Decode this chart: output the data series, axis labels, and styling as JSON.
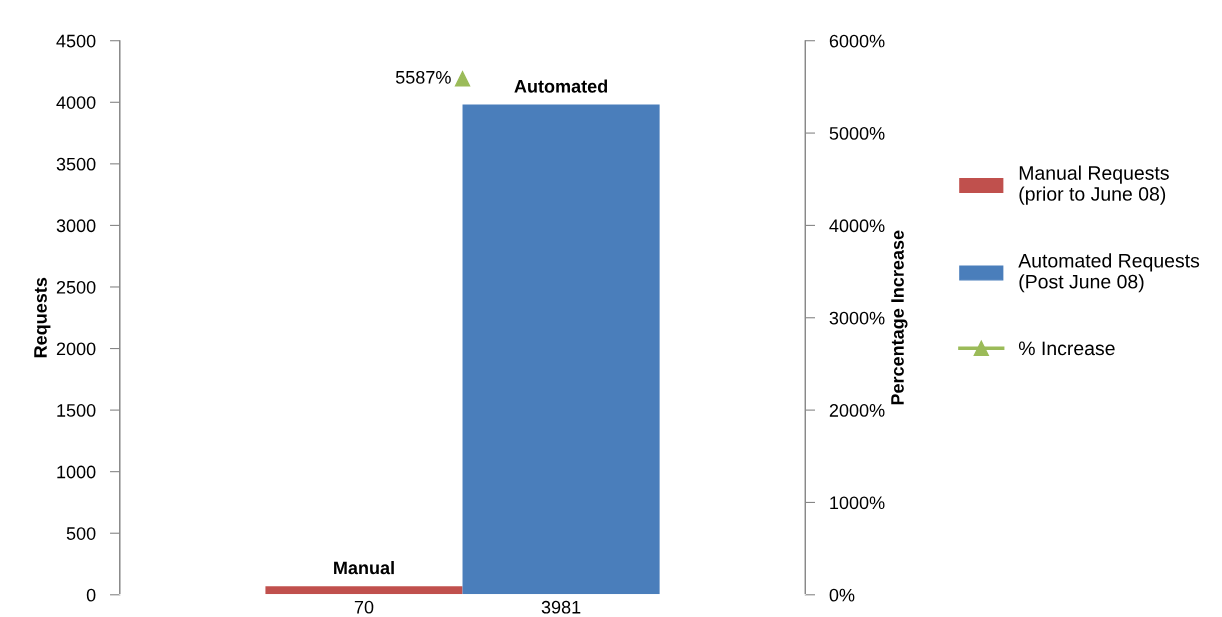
{
  "chart_data": {
    "type": "bar",
    "categories": [
      null
    ],
    "series": [
      {
        "name": "Manual Requests\n(prior to June 08)",
        "color": "#c0504d",
        "values": [
          70
        ],
        "value_labels": [
          "70"
        ]
      },
      {
        "name": "Automated Requests\n(Post June 08)",
        "color": "#4a7ebb",
        "values": [
          3981
        ],
        "value_labels": [
          "3981"
        ]
      },
      {
        "name": "% Increase",
        "type": "line",
        "axis": "y2",
        "color": "#9bbb59",
        "marker": "triangle",
        "values": [
          5587
        ],
        "value_labels": [
          "5587%"
        ]
      }
    ],
    "annotations": [
      {
        "text": "Manual",
        "y": 70
      },
      {
        "text": "Automated",
        "y": 3981
      }
    ],
    "ylabel": "Requests",
    "y2label": "Percentage Increase",
    "ylim": [
      0,
      4500
    ],
    "yticks": [
      0,
      500,
      1000,
      1500,
      2000,
      2500,
      3000,
      3500,
      4000,
      4500
    ],
    "y2lim": [
      0,
      6000
    ],
    "y2ticks": [
      {
        "value": 0,
        "label": "0%"
      },
      {
        "value": 1000,
        "label": "1000%"
      },
      {
        "value": 2000,
        "label": "2000%"
      },
      {
        "value": 3000,
        "label": "3000%"
      },
      {
        "value": 4000,
        "label": "4000%"
      },
      {
        "value": 5000,
        "label": "5000%"
      },
      {
        "value": 6000,
        "label": "6000%"
      }
    ],
    "tick_labels": "y",
    "grid": false,
    "legend": "right"
  }
}
